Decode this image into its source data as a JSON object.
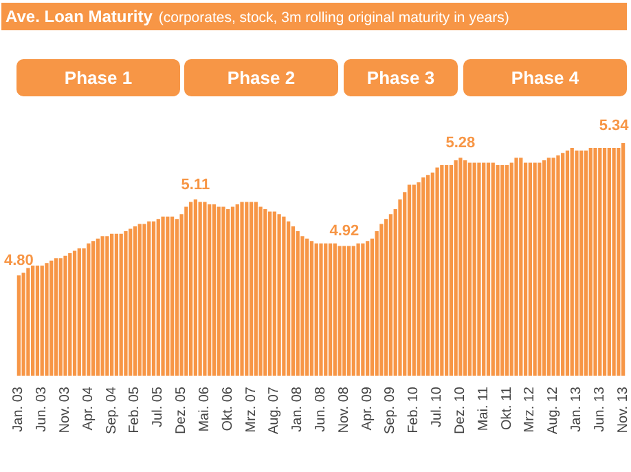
{
  "chart_data": {
    "type": "bar",
    "title": "Ave. Loan Maturity",
    "subtitle": "(corporates, stock, 3m rolling original maturity in years)",
    "categories": [
      "Jan. 03",
      null,
      null,
      null,
      null,
      "Jun. 03",
      null,
      null,
      null,
      null,
      "Nov. 03",
      null,
      null,
      null,
      null,
      "Apr. 04",
      null,
      null,
      null,
      null,
      "Sep. 04",
      null,
      null,
      null,
      null,
      "Feb. 05",
      null,
      null,
      null,
      null,
      "Jul. 05",
      null,
      null,
      null,
      null,
      "Dez. 05",
      null,
      null,
      null,
      null,
      "Mai. 06",
      null,
      null,
      null,
      null,
      "Okt. 06",
      null,
      null,
      null,
      null,
      "Mrz. 07",
      null,
      null,
      null,
      null,
      "Aug. 07",
      null,
      null,
      null,
      null,
      "Jan. 08",
      null,
      null,
      null,
      null,
      "Jun. 08",
      null,
      null,
      null,
      null,
      "Nov. 08",
      null,
      null,
      null,
      null,
      "Apr. 09",
      null,
      null,
      null,
      null,
      "Sep. 09",
      null,
      null,
      null,
      null,
      "Feb. 10",
      null,
      null,
      null,
      null,
      "Jul. 10",
      null,
      null,
      null,
      null,
      "Dez. 10",
      null,
      null,
      null,
      null,
      "Mai. 11",
      null,
      null,
      null,
      null,
      "Okt. 11",
      null,
      null,
      null,
      null,
      "Mrz. 12",
      null,
      null,
      null,
      null,
      "Aug. 12",
      null,
      null,
      null,
      null,
      "Jan. 13",
      null,
      null,
      null,
      null,
      "Jun. 13",
      null,
      null,
      null,
      null,
      "Nov. 13"
    ],
    "values": [
      4.8,
      4.81,
      4.83,
      4.84,
      4.84,
      4.84,
      4.85,
      4.86,
      4.87,
      4.87,
      4.88,
      4.89,
      4.9,
      4.91,
      4.91,
      4.93,
      4.94,
      4.95,
      4.96,
      4.96,
      4.97,
      4.97,
      4.97,
      4.98,
      4.99,
      5.0,
      5.01,
      5.01,
      5.02,
      5.02,
      5.03,
      5.04,
      5.04,
      5.04,
      5.03,
      5.05,
      5.08,
      5.1,
      5.11,
      5.1,
      5.1,
      5.09,
      5.09,
      5.08,
      5.08,
      5.07,
      5.08,
      5.09,
      5.1,
      5.1,
      5.1,
      5.1,
      5.08,
      5.07,
      5.06,
      5.06,
      5.05,
      5.04,
      5.02,
      5.0,
      4.98,
      4.96,
      4.95,
      4.94,
      4.93,
      4.93,
      4.93,
      4.93,
      4.93,
      4.92,
      4.92,
      4.92,
      4.92,
      4.93,
      4.93,
      4.94,
      4.95,
      4.98,
      5.01,
      5.03,
      5.05,
      5.07,
      5.11,
      5.14,
      5.17,
      5.17,
      5.18,
      5.2,
      5.21,
      5.22,
      5.24,
      5.25,
      5.25,
      5.25,
      5.27,
      5.28,
      5.27,
      5.26,
      5.26,
      5.26,
      5.26,
      5.26,
      5.26,
      5.25,
      5.25,
      5.25,
      5.26,
      5.28,
      5.28,
      5.26,
      5.26,
      5.26,
      5.26,
      5.27,
      5.28,
      5.28,
      5.29,
      5.3,
      5.31,
      5.32,
      5.31,
      5.31,
      5.31,
      5.32,
      5.32,
      5.32,
      5.32,
      5.32,
      5.32,
      5.32,
      5.34
    ],
    "value_labels": [
      "4.80",
      null,
      null,
      null,
      null,
      null,
      null,
      null,
      null,
      null,
      null,
      null,
      null,
      null,
      null,
      null,
      null,
      null,
      null,
      null,
      null,
      null,
      null,
      null,
      null,
      null,
      null,
      null,
      null,
      null,
      null,
      null,
      null,
      null,
      null,
      null,
      null,
      null,
      "5.11",
      null,
      null,
      null,
      null,
      null,
      null,
      null,
      null,
      null,
      null,
      null,
      null,
      null,
      null,
      null,
      null,
      null,
      null,
      null,
      null,
      null,
      null,
      null,
      null,
      null,
      null,
      null,
      null,
      null,
      null,
      null,
      "4.92",
      null,
      null,
      null,
      null,
      null,
      null,
      null,
      null,
      null,
      null,
      null,
      null,
      null,
      null,
      null,
      null,
      null,
      null,
      null,
      null,
      null,
      null,
      null,
      null,
      "5.28",
      null,
      null,
      null,
      null,
      null,
      null,
      null,
      null,
      null,
      null,
      null,
      null,
      null,
      null,
      null,
      null,
      null,
      null,
      null,
      null,
      null,
      null,
      null,
      null,
      null,
      null,
      null,
      null,
      null,
      null,
      null,
      null,
      null,
      null,
      "5.34"
    ],
    "color": "#f79646",
    "ylim": [
      4.39,
      5.34
    ],
    "tick_labels": "x",
    "annotations": [
      "Phase 1",
      "Phase 2",
      "Phase 3",
      "Phase 4"
    ]
  }
}
